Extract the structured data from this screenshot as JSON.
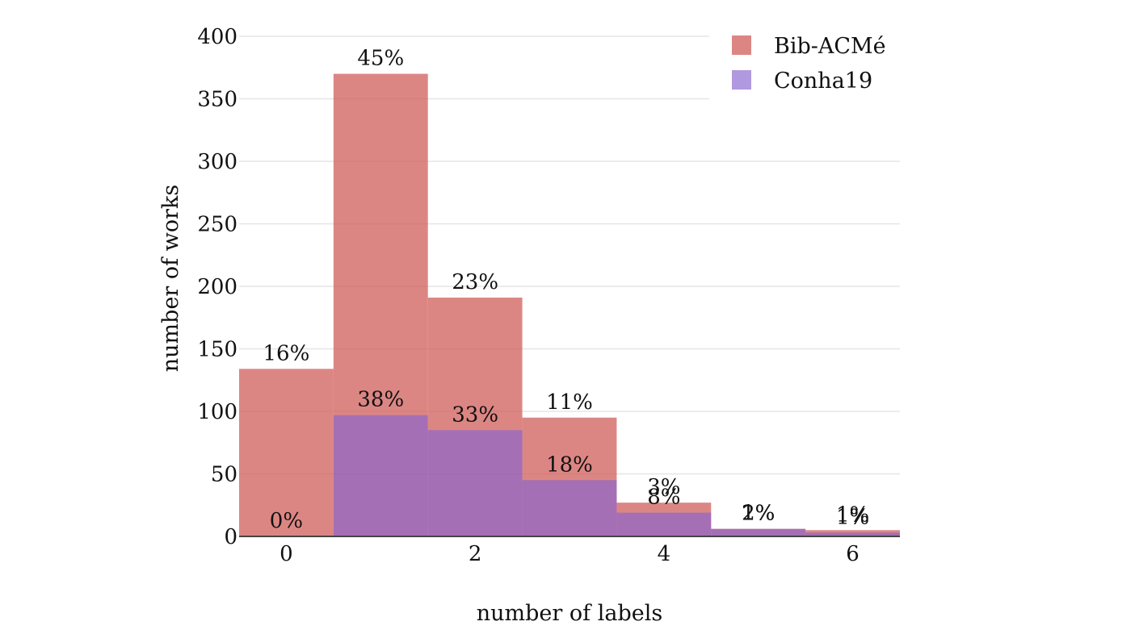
{
  "chart_data": {
    "type": "bar",
    "barmode": "overlay",
    "x": [
      0,
      1,
      2,
      3,
      4,
      5,
      6
    ],
    "xlabel": "number of labels",
    "ylabel": "number of works",
    "xlim": [
      -0.5,
      6.5
    ],
    "ylim": [
      0,
      400
    ],
    "x_ticks": [
      0,
      2,
      4,
      6
    ],
    "y_ticks": [
      0,
      50,
      100,
      150,
      200,
      250,
      300,
      350,
      400
    ],
    "grid": true,
    "legend_position": "top-right",
    "series": [
      {
        "name": "Bib-ACMé",
        "color": "#d05d5b",
        "values": [
          134,
          370,
          191,
          95,
          27,
          6,
          5
        ],
        "labels": [
          "16%",
          "45%",
          "23%",
          "11%",
          "3%",
          "1%",
          "1%"
        ]
      },
      {
        "name": "Conha19",
        "color": "#8762d0",
        "values": [
          0,
          97,
          85,
          45,
          19,
          6,
          3
        ],
        "labels": [
          "0%",
          "38%",
          "33%",
          "18%",
          "8%",
          "2%",
          "1%"
        ]
      }
    ]
  }
}
